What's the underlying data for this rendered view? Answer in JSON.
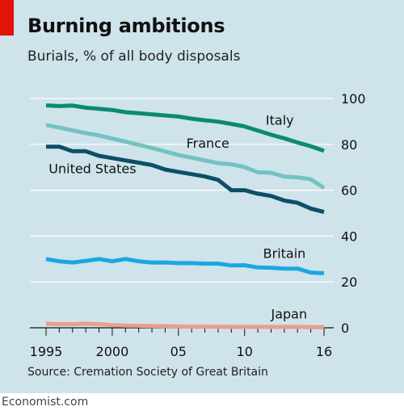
{
  "header": {
    "title": "Burning ambitions",
    "subtitle": "Burials, % of all body disposals"
  },
  "footer": {
    "source": "Source: Cremation Society of Great Britain",
    "credit": "Economist.com"
  },
  "colors": {
    "background": "#cfe3ea",
    "accent": "#e3120b",
    "italy": "#0b8a73",
    "france": "#74c2c2",
    "united_states": "#0c4f66",
    "britain": "#1aa8e0",
    "japan": "#e6a08c",
    "grid": "#ffffff"
  },
  "chart_data": {
    "type": "line",
    "title": "Burning ambitions",
    "subtitle": "Burials, % of all body disposals",
    "x": [
      1995,
      1996,
      1997,
      1998,
      1999,
      2000,
      2001,
      2002,
      2003,
      2004,
      2005,
      2006,
      2007,
      2008,
      2009,
      2010,
      2011,
      2012,
      2013,
      2014,
      2015,
      2016
    ],
    "ylim": [
      0,
      100
    ],
    "yticks": [
      0,
      20,
      40,
      60,
      80,
      100
    ],
    "y_axis_side": "right",
    "xticks": [
      {
        "value": 1995,
        "label": "1995"
      },
      {
        "value": 2000,
        "label": "2000"
      },
      {
        "value": 2005,
        "label": "05"
      },
      {
        "value": 2010,
        "label": "10"
      },
      {
        "value": 2016,
        "label": "16"
      }
    ],
    "grid": true,
    "series": [
      {
        "name": "Italy",
        "color_key": "italy",
        "values": [
          97,
          96.7,
          96.9,
          96,
          95.5,
          95,
          94,
          93.6,
          93.1,
          92.6,
          92.1,
          91.2,
          90.5,
          89.9,
          88.9,
          87.8,
          86,
          84.2,
          82.6,
          80.8,
          79.2,
          77.2
        ]
      },
      {
        "name": "France",
        "color_key": "france",
        "values": [
          88.5,
          87.3,
          86.1,
          84.9,
          83.9,
          82.5,
          81.2,
          79.8,
          78.4,
          76.9,
          75.4,
          74.2,
          73,
          71.8,
          71.3,
          70.1,
          67.8,
          67.6,
          66,
          65.6,
          64.8,
          61
        ]
      },
      {
        "name": "United States",
        "color_key": "united_states",
        "values": [
          79,
          79,
          77,
          77,
          75,
          74,
          73,
          72,
          71,
          69,
          68,
          67,
          66,
          64.5,
          60,
          60,
          58.5,
          57.5,
          55.5,
          54.5,
          52,
          50.5
        ]
      },
      {
        "name": "Britain",
        "color_key": "britain",
        "values": [
          30,
          29,
          28.5,
          29.2,
          30,
          29,
          30,
          29,
          28.5,
          28.5,
          28.2,
          28.2,
          28,
          28,
          27.2,
          27.3,
          26.3,
          26.2,
          25.8,
          25.8,
          24.1,
          23.8
        ]
      },
      {
        "name": "Japan",
        "color_key": "japan",
        "values": [
          1.8,
          1.6,
          1.6,
          1.8,
          1.6,
          1.2,
          1,
          0.9,
          0.8,
          0.7,
          0.6,
          0.5,
          0.5,
          0.5,
          0.4,
          0.4,
          0.4,
          0.4,
          0.4,
          0.4,
          0.3,
          0.3
        ]
      }
    ]
  }
}
